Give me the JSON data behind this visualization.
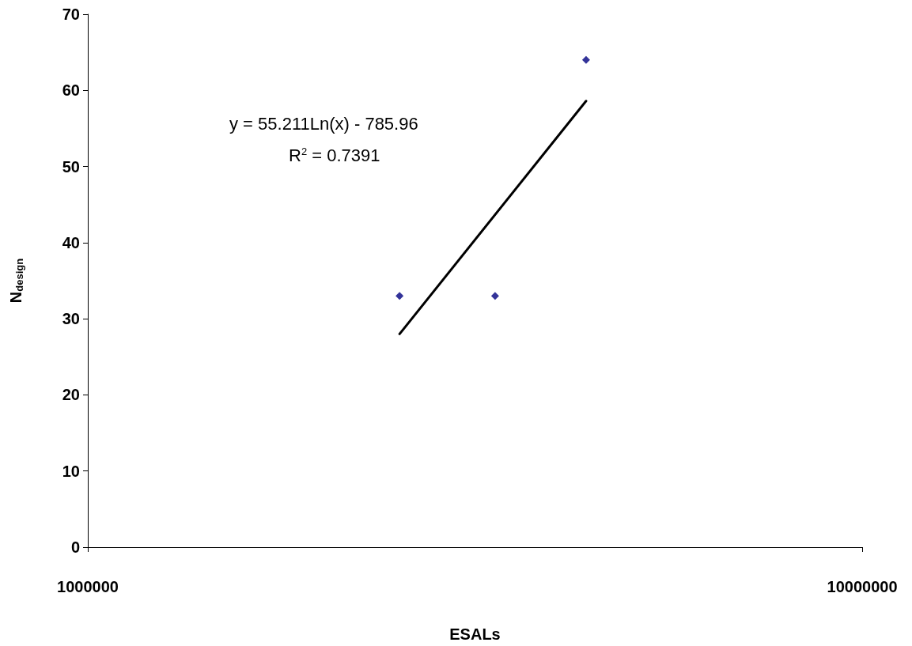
{
  "chart_data": {
    "type": "scatter",
    "xlabel": "ESALs",
    "ylabel": "N$_{design}$",
    "log": "x",
    "xlim": [
      1000000,
      10000000
    ],
    "xticks": [
      1000000,
      10000000
    ],
    "ylim": [
      0,
      70
    ],
    "yticks": [
      0,
      10,
      20,
      30,
      40,
      50,
      60,
      70
    ],
    "series": [
      {
        "marker": "diamond",
        "color": "#000080",
        "x": [
          2527000,
          3357000,
          4400000
        ],
        "values": [
          33,
          33,
          64
        ]
      },
      {
        "type": "line",
        "marker": "none",
        "color": "#000000",
        "x": [
          2527000,
          4400000
        ],
        "values": [
          28,
          58.6
        ]
      }
    ],
    "line_style": "solid",
    "annotations": [
      "y = 55.211Ln(x) - 785.96",
      "R$^{2}$ = 0.7391"
    ]
  }
}
